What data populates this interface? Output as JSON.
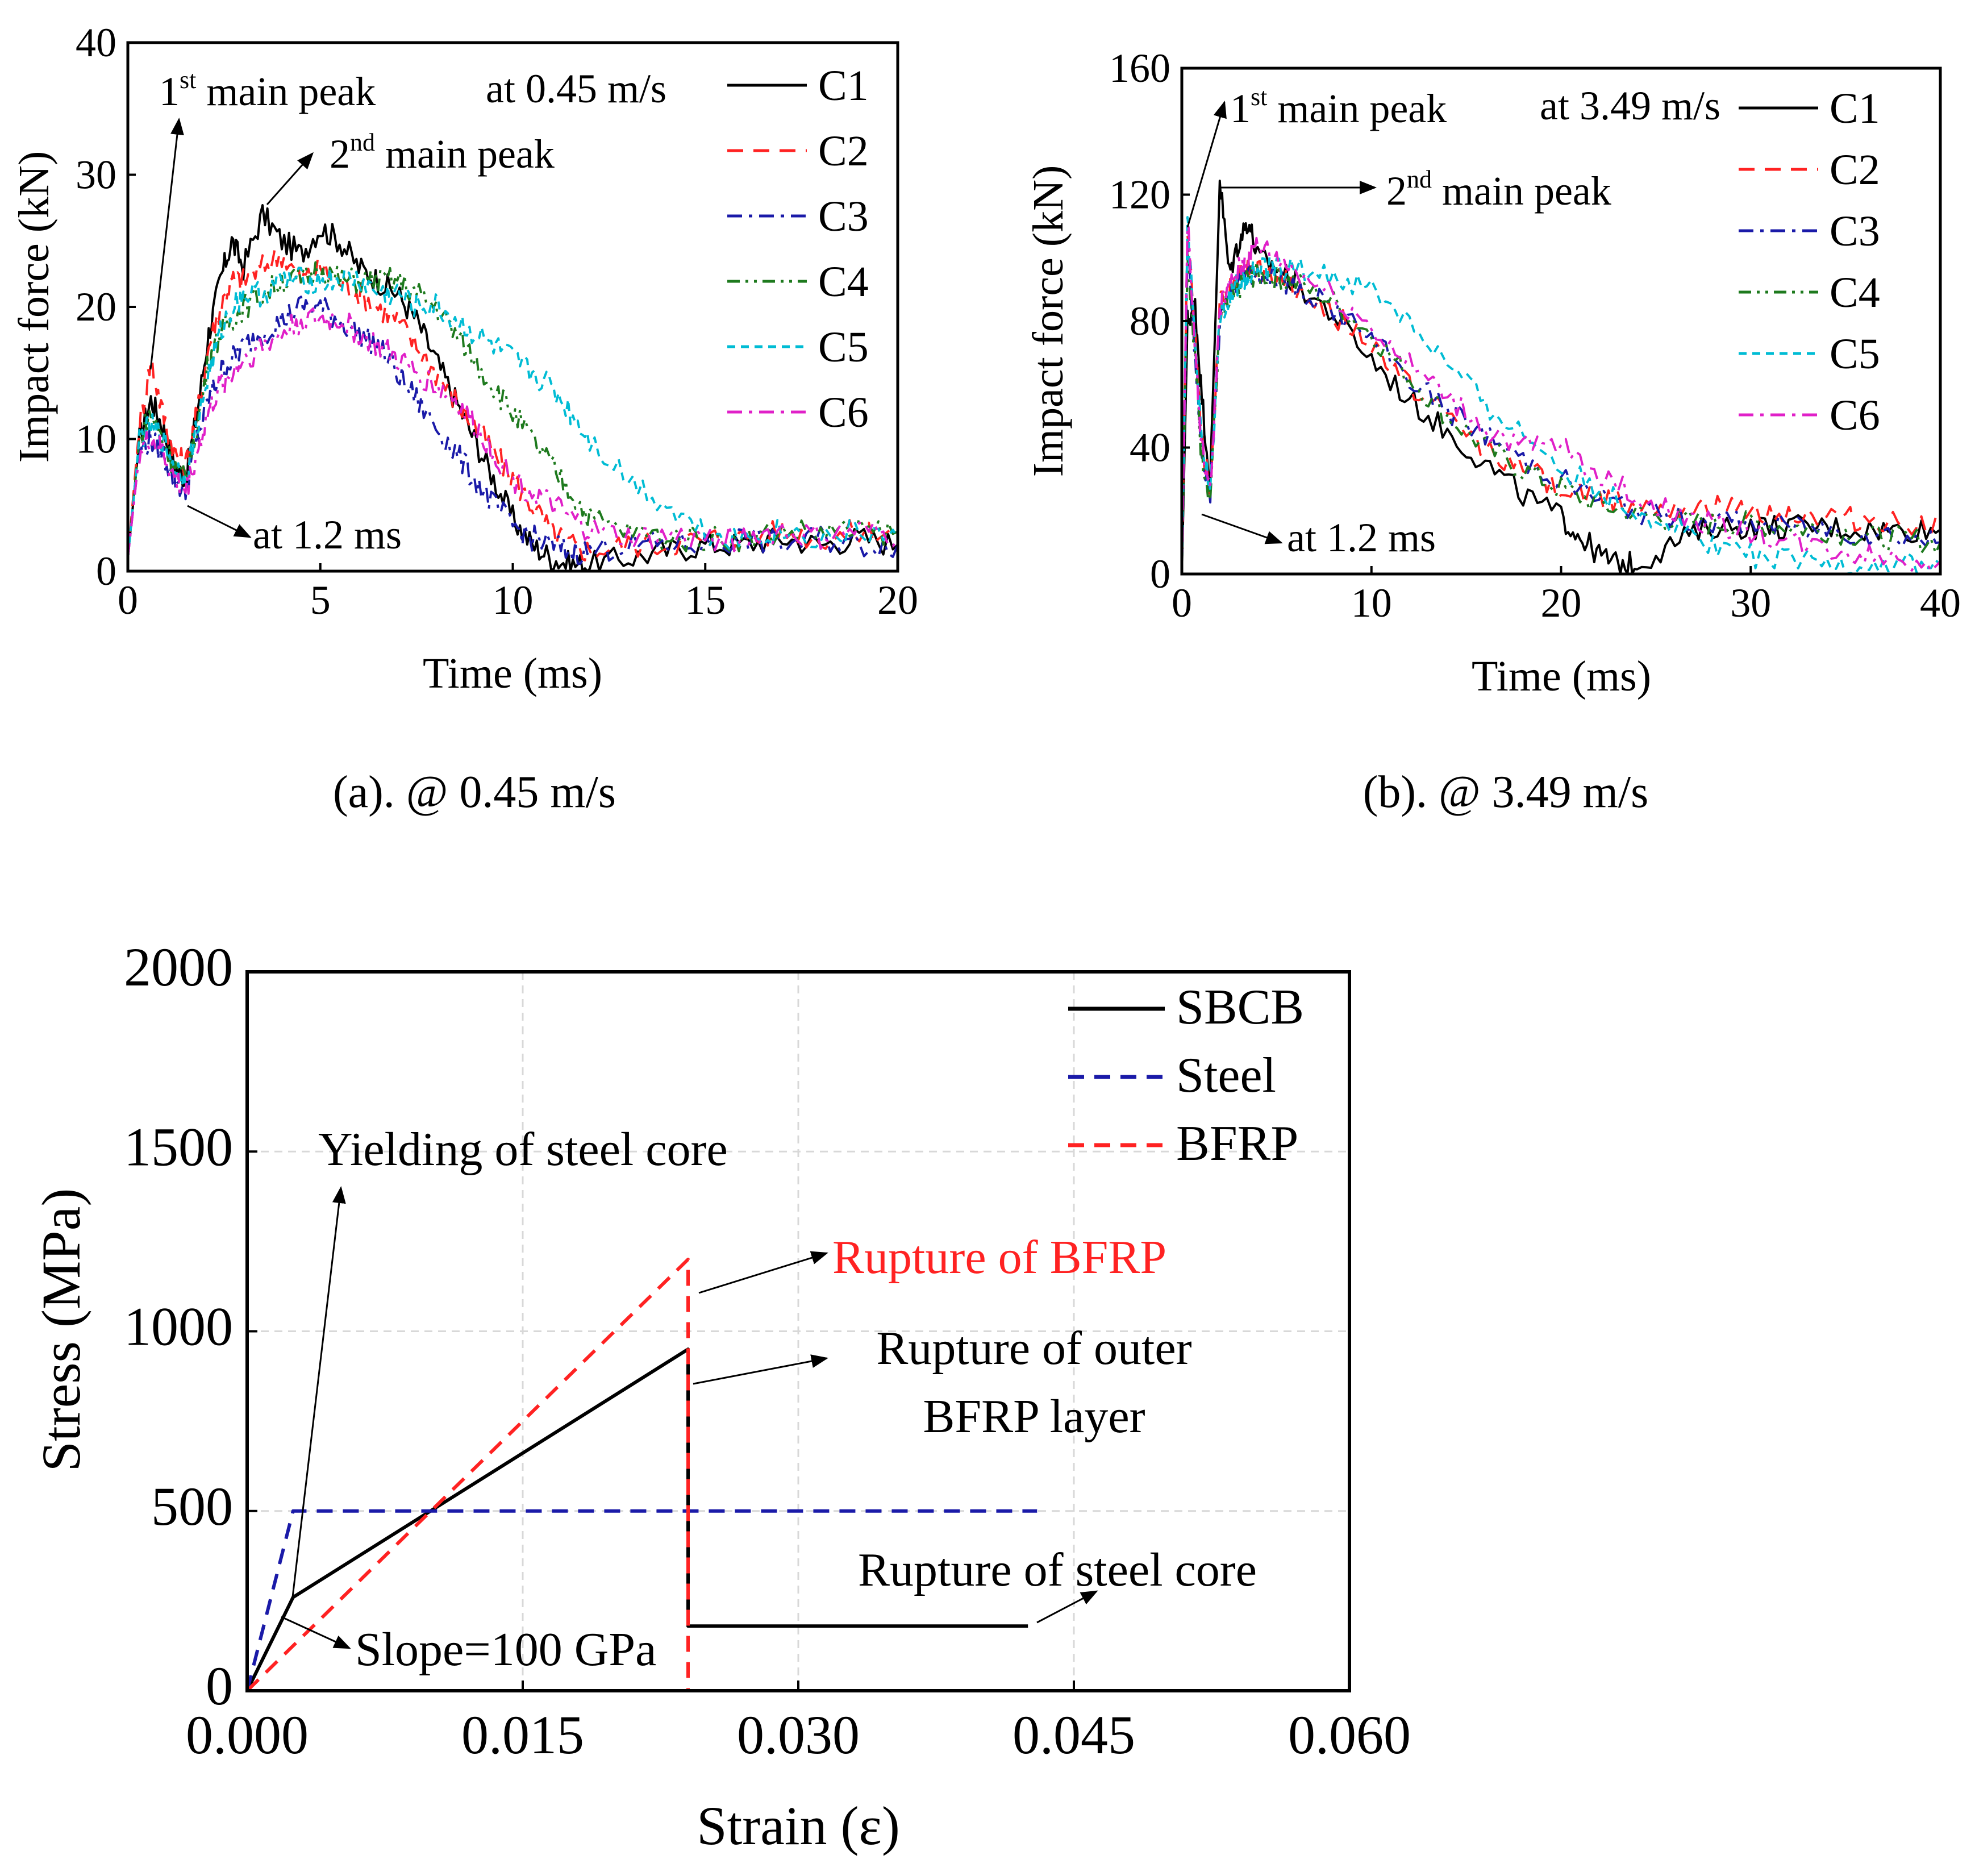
{
  "chart_data": [
    {
      "id": "a",
      "type": "line",
      "caption": "(a). @ 0.45 m/s",
      "xlabel": "Time (ms)",
      "ylabel": "Impact force (kN)",
      "xlim": [
        0,
        20
      ],
      "ylim": [
        0,
        40
      ],
      "xticks": [
        0,
        5,
        10,
        15,
        20
      ],
      "yticks": [
        0,
        10,
        20,
        30,
        40
      ],
      "legend_position": "top-right",
      "annotations": {
        "speed": "at 0.45 m/s",
        "peak1": "1st main peak",
        "peak1_base": "1",
        "peak1_sup": "st",
        "peak1_rest": " main peak",
        "peak2_base": "2",
        "peak2_sup": "nd",
        "peak2_rest": " main peak",
        "at_time": "at 1.2 ms"
      },
      "series": [
        {
          "name": "C1",
          "color": "#000000",
          "dash": "solid",
          "x": [
            0,
            0.3,
            0.6,
            0.9,
            1.2,
            1.5,
            1.8,
            2.1,
            2.4,
            2.7,
            3.0,
            3.5,
            4.0,
            4.5,
            5.0,
            5.5,
            6.0,
            6.5,
            7.0,
            7.5,
            8.0,
            8.5,
            9.0,
            9.5,
            10.0,
            10.5,
            11.0,
            11.5,
            12.0,
            13,
            14,
            15,
            16,
            17,
            18,
            19,
            20
          ],
          "y": [
            1,
            10,
            13,
            11,
            8,
            7,
            12,
            18,
            22,
            25,
            23,
            27,
            25,
            24,
            26,
            25,
            23,
            22,
            21,
            19,
            16,
            13,
            10,
            7,
            4,
            2,
            1,
            0.5,
            0.5,
            1,
            1.5,
            2,
            2,
            2.5,
            2,
            2.5,
            2
          ]
        },
        {
          "name": "C2",
          "color": "#ff2222",
          "dash": "dashed",
          "x": [
            0,
            0.3,
            0.6,
            0.9,
            1.2,
            1.5,
            1.8,
            2.1,
            2.4,
            2.7,
            3.0,
            3.5,
            4.0,
            4.5,
            5.0,
            5.5,
            6.0,
            6.5,
            7.0,
            7.5,
            8.0,
            8.5,
            9.0,
            9.5,
            10.0,
            10.5,
            11.0,
            11.5,
            12.0,
            13,
            14,
            15,
            16,
            17,
            18,
            19,
            20
          ],
          "y": [
            1,
            11,
            16,
            12,
            9,
            8,
            12,
            17,
            20,
            22,
            22,
            23,
            24,
            22,
            23,
            22,
            21,
            20,
            19,
            17,
            15,
            13,
            11,
            9,
            7,
            5,
            3,
            2,
            1.5,
            2,
            2,
            2.5,
            2.5,
            3,
            2.5,
            3,
            3
          ]
        },
        {
          "name": "C3",
          "color": "#1a1aa8",
          "dash": "dashdot",
          "x": [
            0,
            0.3,
            0.6,
            0.9,
            1.2,
            1.5,
            1.8,
            2.1,
            2.4,
            2.7,
            3.0,
            3.5,
            4.0,
            4.5,
            5.0,
            5.5,
            6.0,
            6.5,
            7.0,
            7.5,
            8.0,
            8.5,
            9.0,
            9.5,
            10.0,
            10.5,
            11.0,
            11.5,
            12.0,
            13,
            14,
            15,
            16,
            17,
            18,
            19,
            20
          ],
          "y": [
            1,
            9,
            10,
            9,
            7,
            6,
            10,
            13,
            15,
            16,
            17,
            18,
            19,
            20,
            20,
            19,
            18,
            17,
            15,
            13,
            11,
            9,
            7,
            5,
            3.5,
            2.5,
            2,
            1.5,
            1.5,
            2,
            2,
            2,
            2.5,
            2,
            2.5,
            2,
            2
          ]
        },
        {
          "name": "C4",
          "color": "#1e7a1e",
          "dash": "dashdotdot",
          "x": [
            0,
            0.3,
            0.6,
            0.9,
            1.2,
            1.5,
            1.8,
            2.1,
            2.4,
            2.7,
            3.0,
            3.5,
            4.0,
            4.5,
            5.0,
            5.5,
            6.0,
            6.5,
            7.0,
            7.5,
            8.0,
            8.5,
            9.0,
            9.5,
            10.0,
            10.5,
            11.0,
            11.5,
            12.0,
            13,
            14,
            15,
            16,
            17,
            18,
            19,
            20
          ],
          "y": [
            1,
            10,
            12,
            10,
            8,
            7,
            11,
            16,
            18,
            19,
            20,
            21,
            22,
            22,
            23,
            22,
            22,
            22,
            22,
            21,
            20,
            18,
            16,
            14,
            12,
            10,
            8,
            6,
            4,
            3,
            2.5,
            2.5,
            2.5,
            3,
            3,
            3,
            3
          ]
        },
        {
          "name": "C5",
          "color": "#00bcd4",
          "dash": "shortdash",
          "x": [
            0,
            0.3,
            0.6,
            0.9,
            1.2,
            1.5,
            1.8,
            2.1,
            2.4,
            2.7,
            3.0,
            3.5,
            4.0,
            4.5,
            5.0,
            5.5,
            6.0,
            6.5,
            7.0,
            7.5,
            8.0,
            8.5,
            9.0,
            9.5,
            10.0,
            10.5,
            11.0,
            11.5,
            12.0,
            13,
            14,
            15,
            16,
            17,
            18,
            19,
            20
          ],
          "y": [
            1,
            10,
            11,
            10,
            8,
            7,
            11,
            15,
            18,
            20,
            21,
            21,
            22,
            22,
            22,
            22,
            22,
            21,
            21,
            20,
            20,
            19,
            18,
            17,
            16,
            15,
            14,
            12,
            10,
            7,
            5,
            3,
            2.5,
            3,
            2.5,
            3,
            2.5
          ]
        },
        {
          "name": "C6",
          "color": "#e020c8",
          "dash": "dashdot",
          "x": [
            0,
            0.3,
            0.6,
            0.9,
            1.2,
            1.5,
            1.8,
            2.1,
            2.4,
            2.7,
            3.0,
            3.5,
            4.0,
            4.5,
            5.0,
            5.5,
            6.0,
            6.5,
            7.0,
            7.5,
            8.0,
            8.5,
            9.0,
            9.5,
            10.0,
            10.5,
            11.0,
            11.5,
            12.0,
            13,
            14,
            15,
            16,
            17,
            18,
            19,
            20
          ],
          "y": [
            1,
            9,
            10,
            9,
            7,
            6,
            9,
            12,
            14,
            15,
            16,
            17,
            18,
            19,
            19,
            19,
            18,
            17,
            16,
            15,
            14,
            13,
            11,
            9,
            7,
            6,
            5,
            4,
            3,
            2.5,
            2.5,
            2.5,
            2.5,
            3,
            2.5,
            3,
            2.5
          ]
        }
      ]
    },
    {
      "id": "b",
      "type": "line",
      "caption": "(b). @ 3.49 m/s",
      "xlabel": "Time (ms)",
      "ylabel": "Impact force (kN)",
      "xlim": [
        0,
        40
      ],
      "ylim": [
        0,
        160
      ],
      "xticks": [
        0,
        10,
        20,
        30,
        40
      ],
      "yticks": [
        0,
        40,
        80,
        120,
        160
      ],
      "legend_position": "top-right",
      "annotations": {
        "speed": "at 3.49 m/s",
        "peak1_base": "1",
        "peak1_sup": "st",
        "peak1_rest": " main peak",
        "peak2_base": "2",
        "peak2_sup": "nd",
        "peak2_rest": " main peak",
        "at_time": "at 1.2 ms"
      },
      "series": [
        {
          "name": "C1",
          "color": "#000000",
          "dash": "solid",
          "x": [
            0,
            0.3,
            0.7,
            1.0,
            1.5,
            2.0,
            2.5,
            3.0,
            3.5,
            4.0,
            5,
            6,
            8,
            10,
            12,
            14,
            16,
            18,
            20,
            21,
            22,
            23,
            24,
            26,
            28,
            30,
            32,
            34,
            36,
            38,
            40
          ],
          "y": [
            0,
            80,
            85,
            60,
            28,
            125,
            95,
            105,
            112,
            100,
            97,
            92,
            82,
            68,
            55,
            45,
            35,
            25,
            18,
            12,
            6,
            3,
            3,
            10,
            15,
            15,
            15,
            15,
            14,
            14,
            14
          ]
        },
        {
          "name": "C2",
          "color": "#ff2222",
          "dash": "dashed",
          "x": [
            0,
            0.3,
            0.7,
            1.0,
            1.5,
            2.0,
            2.5,
            3.0,
            3.5,
            4.0,
            5,
            6,
            8,
            10,
            12,
            14,
            16,
            18,
            20,
            22,
            24,
            26,
            28,
            30,
            32,
            34,
            36,
            38,
            40
          ],
          "y": [
            0,
            110,
            75,
            45,
            25,
            85,
            90,
            95,
            98,
            96,
            95,
            90,
            82,
            72,
            60,
            50,
            40,
            33,
            27,
            24,
            22,
            22,
            21,
            20,
            19,
            18,
            17,
            16,
            15
          ]
        },
        {
          "name": "C3",
          "color": "#1a1aa8",
          "dash": "dashdot",
          "x": [
            0,
            0.3,
            0.7,
            1.0,
            1.5,
            2.0,
            2.5,
            3.0,
            3.5,
            4.0,
            5,
            6,
            8,
            10,
            12,
            14,
            16,
            18,
            20,
            22,
            24,
            26,
            28,
            30,
            32,
            34,
            36,
            38,
            40
          ],
          "y": [
            0,
            105,
            70,
            40,
            25,
            80,
            88,
            92,
            95,
            95,
            94,
            90,
            84,
            74,
            62,
            52,
            44,
            36,
            30,
            24,
            20,
            18,
            17,
            16,
            15,
            14,
            13,
            12,
            10
          ]
        },
        {
          "name": "C4",
          "color": "#1e7a1e",
          "dash": "dashdotdot",
          "x": [
            0,
            0.3,
            0.7,
            1.0,
            1.5,
            2.0,
            2.5,
            3.0,
            3.5,
            4.0,
            5,
            6,
            8,
            10,
            12,
            14,
            16,
            18,
            20,
            22,
            24,
            26,
            28,
            30,
            32,
            34,
            36,
            38,
            40
          ],
          "y": [
            0,
            100,
            70,
            40,
            24,
            80,
            85,
            90,
            94,
            95,
            94,
            92,
            86,
            76,
            62,
            50,
            40,
            33,
            27,
            22,
            19,
            17,
            16,
            16,
            15,
            14,
            12,
            11,
            10
          ]
        },
        {
          "name": "C5",
          "color": "#00bcd4",
          "dash": "shortdash",
          "x": [
            0,
            0.3,
            0.7,
            1.0,
            1.5,
            2.0,
            2.5,
            3.0,
            3.5,
            4.0,
            5,
            6,
            8,
            10,
            12,
            14,
            16,
            18,
            20,
            22,
            24,
            26,
            28,
            30,
            32,
            34,
            36,
            38,
            40
          ],
          "y": [
            0,
            110,
            75,
            45,
            25,
            82,
            88,
            92,
            95,
            96,
            97,
            96,
            94,
            90,
            80,
            66,
            54,
            44,
            34,
            26,
            20,
            15,
            10,
            6,
            4,
            3,
            3,
            3,
            3
          ]
        },
        {
          "name": "C6",
          "color": "#e020c8",
          "dash": "dashdot",
          "x": [
            0,
            0.3,
            0.7,
            1.0,
            1.5,
            2.0,
            2.5,
            3.0,
            3.5,
            4.0,
            5,
            6,
            8,
            10,
            12,
            14,
            16,
            18,
            20,
            22,
            24,
            26,
            28,
            30,
            32,
            34,
            36,
            38,
            40
          ],
          "y": [
            0,
            112,
            72,
            42,
            25,
            84,
            90,
            96,
            100,
            104,
            100,
            96,
            88,
            78,
            66,
            56,
            46,
            40,
            40,
            32,
            24,
            19,
            16,
            13,
            10,
            8,
            6,
            5,
            4
          ]
        }
      ]
    },
    {
      "id": "c",
      "type": "line",
      "xlabel": "Strain (ε)",
      "ylabel": "Stress (MPa)",
      "xlim": [
        0,
        0.06
      ],
      "ylim": [
        0,
        2000
      ],
      "xticks": [
        "0.000",
        "0.015",
        "0.030",
        "0.045",
        "0.060"
      ],
      "xtick_values": [
        0,
        0.015,
        0.03,
        0.045,
        0.06
      ],
      "yticks": [
        0,
        500,
        1000,
        1500,
        2000
      ],
      "grid": true,
      "legend_position": "top-right",
      "annotations": {
        "yield": "Yielding of steel core",
        "rupture_bfrp": "Rupture of BFRP",
        "rupture_outer_1": "Rupture of outer",
        "rupture_outer_2": "BFRP layer",
        "rupture_steel": "Rupture of steel core",
        "slope": "Slope=100 GPa"
      },
      "series": [
        {
          "name": "SBCB",
          "color": "#000000",
          "dash": "solid",
          "x": [
            0,
            0.0025,
            0.024,
            0.024,
            0.0425
          ],
          "y": [
            0,
            260,
            950,
            180,
            180
          ]
        },
        {
          "name": "Steel",
          "color": "#1a1aa8",
          "dash": "dashed",
          "x": [
            0,
            0.0025,
            0.043
          ],
          "y": [
            0,
            500,
            500
          ]
        },
        {
          "name": "BFRP",
          "color": "#ff2222",
          "dash": "dashed",
          "x": [
            0,
            0.024,
            0.024
          ],
          "y": [
            0,
            1200,
            0
          ]
        }
      ]
    }
  ]
}
